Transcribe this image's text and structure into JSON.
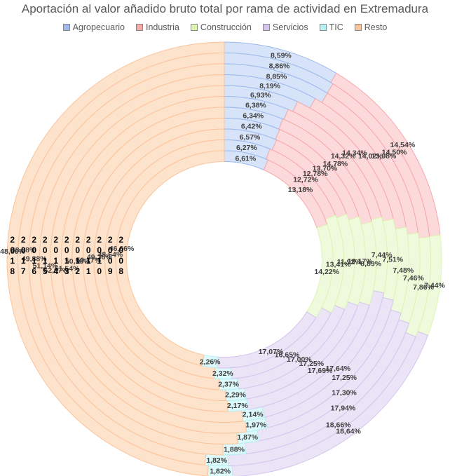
{
  "chart_data": {
    "type": "doughnut",
    "title": "Aportación al valor añadido bruto total por rama de actividad en Extremadura",
    "legend_position": "top",
    "categories": [
      "Agropecuario",
      "Industria",
      "Construcción",
      "Servicios",
      "TIC",
      "Resto"
    ],
    "colors": [
      "#9db9ed",
      "#f9a8aa",
      "#dcf5b4",
      "#d3c5ee",
      "#b4f1f6",
      "#fcc49a"
    ],
    "colors_light": [
      "#d6e3f8",
      "#fcd9da",
      "#eefadb",
      "#ebe4f7",
      "#dcf9fb",
      "#fde2cc"
    ],
    "rings": [
      "2018",
      "2017",
      "2016",
      "2015",
      "2014",
      "2013",
      "2012",
      "2011",
      "2010",
      "2009",
      "2008"
    ],
    "ring_order_note": "outermost ring first",
    "series": [
      {
        "name": "2018",
        "values": [
          8.59,
          14.54,
          7.44,
          18.64,
          1.82,
          48.6
        ]
      },
      {
        "name": "2017",
        "values": [
          8.86,
          14.5,
          7.86,
          18.66,
          1.82,
          48.68
        ]
      },
      {
        "name": "2016",
        "values": [
          8.85,
          13.98,
          7.46,
          17.94,
          1.88,
          49.88
        ]
      },
      {
        "name": "2015",
        "values": [
          8.19,
          14.02,
          7.48,
          17.3,
          1.87,
          51.14
        ]
      },
      {
        "name": "2014",
        "values": [
          6.93,
          14.34,
          7.51,
          17.25,
          1.97,
          52.07
        ]
      },
      {
        "name": "2013",
        "values": [
          6.38,
          14.32,
          7.44,
          17.64,
          2.14,
          51.54
        ]
      },
      {
        "name": "2012",
        "values": [
          6.34,
          14.78,
          8.89,
          17.69,
          2.17,
          50.58
        ]
      },
      {
        "name": "2011",
        "values": [
          6.42,
          13.7,
          10.17,
          17.25,
          2.29,
          50.17
        ]
      },
      {
        "name": "2010",
        "values": [
          6.57,
          12.78,
          11.92,
          17.0,
          2.37,
          49.36
        ]
      },
      {
        "name": "2009",
        "values": [
          6.27,
          12.72,
          13.41,
          16.65,
          2.32,
          48.64
        ]
      },
      {
        "name": "2008",
        "values": [
          6.61,
          13.18,
          14.22,
          17.07,
          2.26,
          46.66
        ]
      }
    ],
    "labels": [
      [
        "8,59%",
        "14,54%",
        "7,44%",
        "18,64%",
        "1,82%",
        "48,60%"
      ],
      [
        "8,86%",
        "14,50%",
        "7,86%",
        "18,66%",
        "1,82%",
        "48,68%"
      ],
      [
        "8,85%",
        "13,98%",
        "7,46%",
        "17,94%",
        "1,88%",
        "49,88%"
      ],
      [
        "8,19%",
        "14,02%",
        "7,48%",
        "17,30%",
        "1,87%",
        "51,14%"
      ],
      [
        "6,93%",
        "14,34%",
        "7,51%",
        "17,25%",
        "1,97%",
        "52,07%"
      ],
      [
        "6,38%",
        "14,32%",
        "7,44%",
        "17,64%",
        "2,14%",
        "51,54%"
      ],
      [
        "6,34%",
        "14,78%",
        "8,89%",
        "17,69%",
        "2,17%",
        "50,58%"
      ],
      [
        "6,42%",
        "13,70%",
        "10,17%",
        "17,25%",
        "2,29%",
        "50,17%"
      ],
      [
        "6,57%",
        "12,78%",
        "11,92%",
        "17,00%",
        "2,37%",
        "49,36%"
      ],
      [
        "6,27%",
        "12,72%",
        "13,41%",
        "16,65%",
        "2,32%",
        "48,64%"
      ],
      [
        "6,61%",
        "13,18%",
        "14,22%",
        "17,07%",
        "2,26%",
        "46,66%"
      ]
    ]
  }
}
